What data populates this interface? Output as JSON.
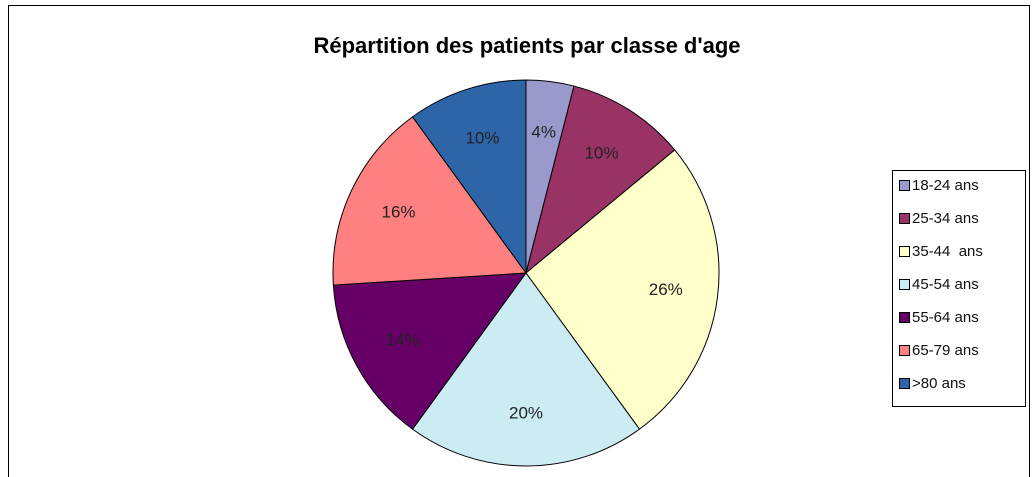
{
  "chart_data": {
    "type": "pie",
    "title": "Répartition des patients par classe d'age",
    "categories": [
      "18-24 ans",
      "25-34 ans",
      "35-44  ans",
      "45-54 ans",
      "55-64 ans",
      "65-79 ans",
      ">80 ans"
    ],
    "values": [
      4,
      10,
      26,
      20,
      14,
      16,
      10
    ],
    "value_labels": [
      "4%",
      "10%",
      "26%",
      "20%",
      "14%",
      "16%",
      "10%"
    ],
    "colors": [
      "#9999cc",
      "#993366",
      "#ffffcc",
      "#ccecf4",
      "#660066",
      "#ff8080",
      "#2e64a8"
    ],
    "legend": "right"
  }
}
